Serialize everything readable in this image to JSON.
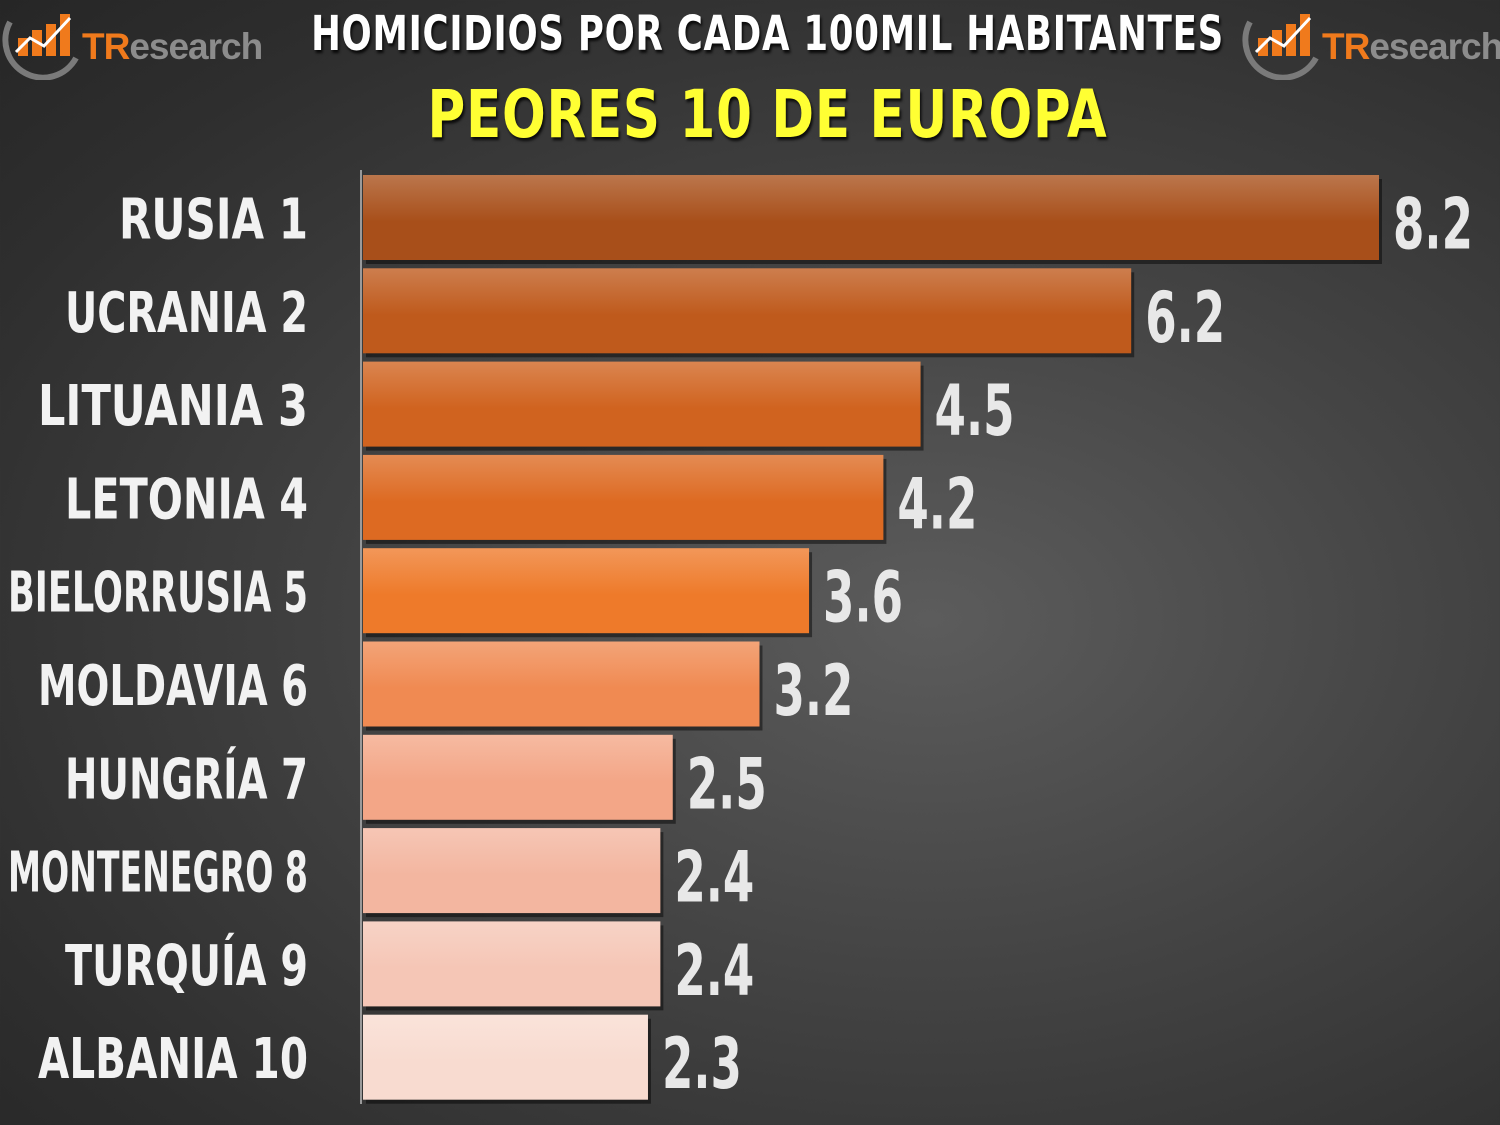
{
  "header": {
    "title": "HOMICIDIOS POR CADA 100MIL HABITANTES",
    "subtitle": "PEORES 10 DE EUROPA",
    "logo_left": {
      "brand_accent": "TR",
      "brand_rest": "esearch"
    },
    "logo_right": {
      "brand_accent": "TR",
      "brand_rest": "esearch"
    }
  },
  "chart_data": {
    "type": "bar",
    "orientation": "horizontal",
    "title": "HOMICIDIOS POR CADA 100MIL HABITANTES",
    "subtitle": "PEORES 10 DE EUROPA",
    "categories": [
      "RUSIA 1",
      "UCRANIA 2",
      "LITUANIA 3",
      "LETONIA 4",
      "BIELORRUSIA 5",
      "MOLDAVIA 6",
      "HUNGRÍA 7",
      "MONTENEGRO 8",
      "TURQUÍA 9",
      "ALBANIA 10"
    ],
    "values": [
      8.2,
      6.2,
      4.5,
      4.2,
      3.6,
      3.2,
      2.5,
      2.4,
      2.4,
      2.3
    ],
    "value_labels": [
      "8.2",
      "6.2",
      "4.5",
      "4.2",
      "3.6",
      "3.2",
      "2.5",
      "2.4",
      "2.4",
      "2.3"
    ],
    "bar_colors": [
      "#a84f1a",
      "#bf5a1c",
      "#d0631f",
      "#dd6a22",
      "#ee7a2a",
      "#f08a52",
      "#f3a687",
      "#f3b6a0",
      "#f5c6b6",
      "#f8dbd0"
    ],
    "xlim": [
      0,
      8.2
    ],
    "grid": false,
    "legend": "none"
  },
  "colors": {
    "title": "#ffffff",
    "subtitle": "#ffff33",
    "brand_orange": "#f07a1c",
    "brand_gray": "#8c8c8c",
    "value_text": "#e8e8e8",
    "axis": "#9a9a9a"
  }
}
